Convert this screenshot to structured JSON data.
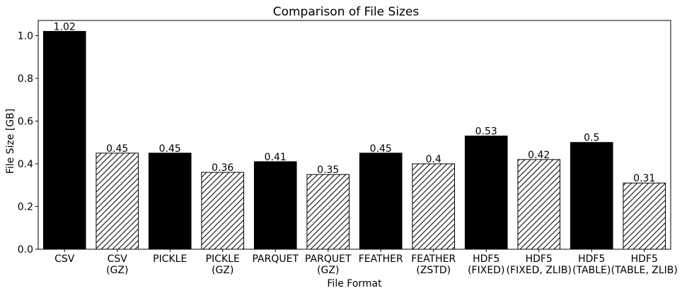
{
  "chart_data": {
    "type": "bar",
    "title": "Comparison of File Sizes",
    "xlabel": "File Format",
    "ylabel": "File Size [GB]",
    "ylim": [
      0,
      1.071
    ],
    "yticks": [
      "0.0",
      "0.2",
      "0.4",
      "0.6",
      "0.8",
      "1.0"
    ],
    "categories": [
      [
        "CSV"
      ],
      [
        "CSV",
        "(GZ)"
      ],
      [
        "PICKLE"
      ],
      [
        "PICKLE",
        "(GZ)"
      ],
      [
        "PARQUET"
      ],
      [
        "PARQUET",
        "(GZ)"
      ],
      [
        "FEATHER"
      ],
      [
        "FEATHER",
        "(ZSTD)"
      ],
      [
        "HDF5",
        "(FIXED)"
      ],
      [
        "HDF5",
        "(FIXED, ZLIB)"
      ],
      [
        "HDF5",
        "(TABLE)"
      ],
      [
        "HDF5",
        "(TABLE, ZLIB)"
      ]
    ],
    "values": [
      1.02,
      0.45,
      0.45,
      0.36,
      0.41,
      0.35,
      0.45,
      0.4,
      0.53,
      0.42,
      0.5,
      0.31
    ],
    "value_labels": [
      "1.02",
      "0.45",
      "0.45",
      "0.36",
      "0.41",
      "0.35",
      "0.45",
      "0.4",
      "0.53",
      "0.42",
      "0.5",
      "0.31"
    ],
    "fill": [
      "solid",
      "hatched",
      "solid",
      "hatched",
      "solid",
      "hatched",
      "solid",
      "hatched",
      "solid",
      "hatched",
      "solid",
      "hatched"
    ],
    "colors": {
      "solid": "#000000",
      "hatched_bg": "#ffffff",
      "edge": "#000000"
    },
    "grid": false,
    "legend": "none"
  }
}
